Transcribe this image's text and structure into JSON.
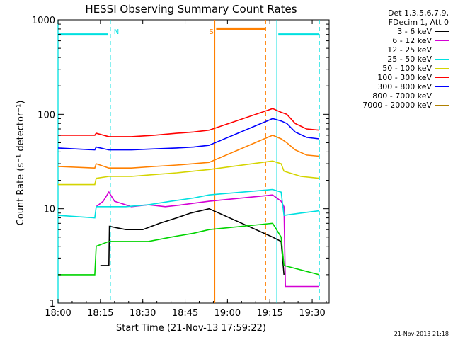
{
  "chart_data": {
    "type": "line",
    "title": "HESSI Observing Summary Count Rates",
    "xlabel": "Start Time (21-Nov-13 17:59:22)",
    "ylabel": "Count Rate (s⁻¹ detector⁻¹)",
    "y_scale": "log",
    "ylim": [
      1,
      1000
    ],
    "xlim": [
      0,
      96
    ],
    "x_ticks": [
      {
        "value": 0,
        "label": "18:00"
      },
      {
        "value": 15,
        "label": "18:15"
      },
      {
        "value": 30,
        "label": "18:30"
      },
      {
        "value": 45,
        "label": "18:45"
      },
      {
        "value": 60,
        "label": "19:00"
      },
      {
        "value": 75,
        "label": "19:15"
      },
      {
        "value": 90,
        "label": "19:30"
      }
    ],
    "y_ticks": [
      {
        "value": 1,
        "label": "1"
      },
      {
        "value": 10,
        "label": "10"
      },
      {
        "value": 100,
        "label": "100"
      },
      {
        "value": 1000,
        "label": "1000"
      }
    ],
    "legend_header": [
      "Det 1,3,5,6,7,9,",
      "FDecim 1, Att 0"
    ],
    "series": [
      {
        "name": "3 - 6 keV",
        "color": "#000000",
        "points": [
          [
            15,
            2.5
          ],
          [
            18,
            2.5
          ],
          [
            18.2,
            6.5
          ],
          [
            24,
            6
          ],
          [
            30,
            6
          ],
          [
            36,
            7
          ],
          [
            42,
            8
          ],
          [
            47,
            9
          ],
          [
            53.5,
            10
          ],
          [
            76,
            5
          ],
          [
            79,
            4.5
          ],
          [
            80,
            2
          ]
        ]
      },
      {
        "name": "6 - 12 keV",
        "color": "#d400d4",
        "points": [
          [
            13.5,
            10.5
          ],
          [
            16,
            12
          ],
          [
            18,
            15
          ],
          [
            20,
            12
          ],
          [
            26,
            10.5
          ],
          [
            32,
            11
          ],
          [
            38,
            10.5
          ],
          [
            44,
            11
          ],
          [
            53.5,
            12
          ],
          [
            76,
            14
          ],
          [
            79,
            12
          ],
          [
            80,
            10.5
          ],
          [
            80.5,
            1.5
          ],
          [
            92.5,
            1.5
          ]
        ]
      },
      {
        "name": "12 - 25 keV",
        "color": "#00d400",
        "points": [
          [
            0,
            2
          ],
          [
            13,
            2
          ],
          [
            13.5,
            4
          ],
          [
            18,
            4.5
          ],
          [
            24,
            4.5
          ],
          [
            32,
            4.5
          ],
          [
            40,
            5
          ],
          [
            48,
            5.5
          ],
          [
            53.5,
            6
          ],
          [
            76,
            7
          ],
          [
            79,
            5
          ],
          [
            80,
            2.5
          ],
          [
            92.5,
            2
          ]
        ]
      },
      {
        "name": "25 - 50 keV",
        "color": "#00e0e0",
        "points": [
          [
            0,
            8.5
          ],
          [
            13,
            8
          ],
          [
            13.5,
            10.5
          ],
          [
            18,
            10.5
          ],
          [
            24,
            10.5
          ],
          [
            32,
            11
          ],
          [
            40,
            12
          ],
          [
            48,
            13
          ],
          [
            53.5,
            14
          ],
          [
            76,
            16
          ],
          [
            79,
            15
          ],
          [
            80,
            8.5
          ],
          [
            86,
            9
          ],
          [
            92.5,
            9.5
          ]
        ]
      },
      {
        "name": "50 - 100 keV",
        "color": "#d4d400",
        "points": [
          [
            0,
            18
          ],
          [
            13,
            18
          ],
          [
            13.5,
            21
          ],
          [
            18,
            22
          ],
          [
            26,
            22
          ],
          [
            34,
            23
          ],
          [
            42,
            24
          ],
          [
            48,
            25
          ],
          [
            53.5,
            26
          ],
          [
            76,
            32
          ],
          [
            79,
            30
          ],
          [
            80,
            25
          ],
          [
            86,
            22
          ],
          [
            92.5,
            21
          ]
        ]
      },
      {
        "name": "100 - 300 keV",
        "color": "#ff0000",
        "points": [
          [
            0,
            60
          ],
          [
            13,
            60
          ],
          [
            13.5,
            63
          ],
          [
            18,
            58
          ],
          [
            26,
            58
          ],
          [
            34,
            60
          ],
          [
            42,
            63
          ],
          [
            48,
            65
          ],
          [
            53.5,
            68
          ],
          [
            76,
            115
          ],
          [
            79,
            105
          ],
          [
            81,
            100
          ],
          [
            84,
            80
          ],
          [
            88,
            70
          ],
          [
            92.5,
            68
          ]
        ]
      },
      {
        "name": "300 - 800 keV",
        "color": "#0000ff",
        "points": [
          [
            0,
            44
          ],
          [
            13,
            42
          ],
          [
            13.5,
            45
          ],
          [
            18,
            42
          ],
          [
            26,
            42
          ],
          [
            34,
            43
          ],
          [
            42,
            44
          ],
          [
            48,
            45
          ],
          [
            53.5,
            47
          ],
          [
            76,
            90
          ],
          [
            79,
            85
          ],
          [
            81,
            80
          ],
          [
            84,
            65
          ],
          [
            88,
            57
          ],
          [
            92.5,
            55
          ]
        ]
      },
      {
        "name": "800 - 7000 keV",
        "color": "#ff8000",
        "points": [
          [
            0,
            28
          ],
          [
            13,
            27
          ],
          [
            13.5,
            30
          ],
          [
            18,
            27
          ],
          [
            26,
            27
          ],
          [
            34,
            28
          ],
          [
            42,
            29
          ],
          [
            48,
            30
          ],
          [
            53.5,
            31
          ],
          [
            76,
            60
          ],
          [
            79,
            55
          ],
          [
            81,
            50
          ],
          [
            84,
            42
          ],
          [
            88,
            37
          ],
          [
            92.5,
            36
          ]
        ]
      },
      {
        "name": "7000 - 20000 keV",
        "color": "#b08000",
        "points": []
      }
    ],
    "annotations": [
      {
        "label": "N",
        "color": "#00e0e0",
        "x": 18.5,
        "bar_from": 0,
        "bar_to": 17.8,
        "bar_y": 700
      },
      {
        "label": "S",
        "color": "#ff8000",
        "x": 55.5,
        "bar_from": 56,
        "bar_to": 73.5,
        "bar_y": 800
      }
    ],
    "markers": [
      {
        "x": 0,
        "color": "#00e0e0",
        "style": "solid"
      },
      {
        "x": 18.5,
        "color": "#00e0e0",
        "style": "dashed"
      },
      {
        "x": 55.5,
        "color": "#ff8000",
        "style": "solid"
      },
      {
        "x": 73.5,
        "color": "#ff8000",
        "style": "dashed"
      },
      {
        "x": 77.5,
        "color": "#00e0e0",
        "style": "solid"
      },
      {
        "x": 92.5,
        "color": "#00e0e0",
        "style": "dashed"
      }
    ],
    "extra_bars": [
      {
        "from": 78,
        "to": 92.5,
        "y": 700,
        "color": "#00e0e0"
      }
    ]
  },
  "footer": {
    "timestamp": "21-Nov-2013 21:18"
  }
}
